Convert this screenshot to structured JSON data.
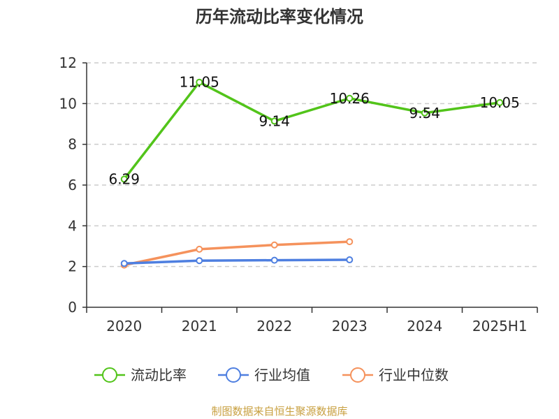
{
  "chart_data": {
    "type": "line",
    "title": "历年流动比率变化情况",
    "categories": [
      "2020",
      "2021",
      "2022",
      "2023",
      "2024",
      "2025H1"
    ],
    "ylim": [
      0,
      12
    ],
    "yticks": [
      0,
      2,
      4,
      6,
      8,
      10,
      12
    ],
    "grid": true,
    "legend_position": "bottom",
    "series": [
      {
        "name": "流动比率",
        "color": "#52c41a",
        "values": [
          6.29,
          11.05,
          9.14,
          10.26,
          9.54,
          10.05
        ],
        "labels": [
          "6.29",
          "11.05",
          "9.14",
          "10.26",
          "9.54",
          "10.05"
        ]
      },
      {
        "name": "行业均值",
        "color": "#4e7fe0",
        "values": [
          2.15,
          2.29,
          2.31,
          2.33,
          null,
          null
        ]
      },
      {
        "name": "行业中位数",
        "color": "#f5925c",
        "values": [
          2.07,
          2.85,
          3.06,
          3.22,
          null,
          null
        ]
      }
    ]
  },
  "source_text": "制图数据来自恒生聚源数据库",
  "source_color": "#c8a040"
}
